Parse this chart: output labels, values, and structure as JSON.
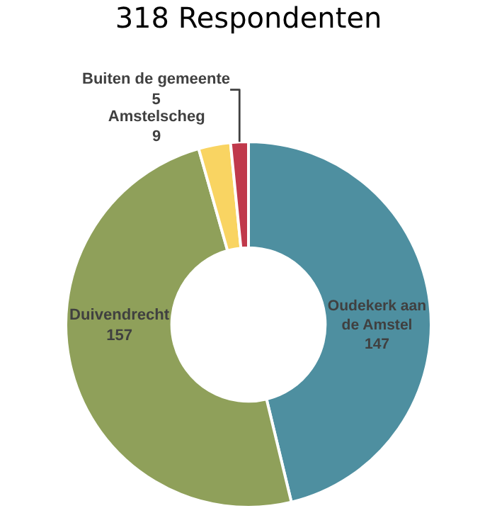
{
  "chart_data": {
    "type": "donut",
    "title": "318 Respondenten",
    "categories": [
      "Oudekerk aan de Amstel",
      "Duivendrecht",
      "Amstelscheg",
      "Buiten de gemeente"
    ],
    "values": [
      147,
      157,
      9,
      5
    ],
    "colors": [
      "#4e8fa0",
      "#8fa05a",
      "#f9d462",
      "#c0394b"
    ],
    "data_labels": true,
    "legend": false
  }
}
